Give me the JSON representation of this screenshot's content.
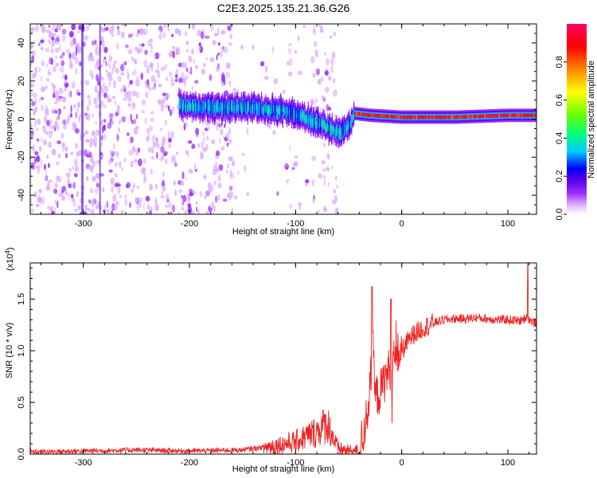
{
  "title": "C2E3.2025.135.21.36.G26",
  "chart_data": [
    {
      "type": "heatmap",
      "xlabel": "Height of straight line (km)",
      "ylabel": "Frequency (Hz)",
      "xlim": [
        -350,
        127
      ],
      "ylim": [
        -50,
        50
      ],
      "xticks": [
        -300,
        -200,
        -100,
        0,
        100
      ],
      "yticks": [
        -40,
        -20,
        0,
        20,
        40
      ],
      "colorbar": {
        "label": "Normalized spectral amplitude",
        "range": [
          0,
          1
        ],
        "ticks": [
          0.0,
          0.2,
          0.4,
          0.6,
          0.8
        ],
        "tick_labels": [
          "0.0",
          "0.2",
          "0.4",
          "0.6",
          "0.8"
        ],
        "colors": [
          "#ffffff",
          "#e0b0ff",
          "#9b30ff",
          "#5a00e8",
          "#0000ff",
          "#00ccff",
          "#00ff80",
          "#66ff00",
          "#ffff00",
          "#ff8800",
          "#ff0000",
          "#ff0060"
        ]
      },
      "ridge": {
        "x": [
          -210,
          -180,
          -150,
          -120,
          -100,
          -80,
          -60,
          -50,
          -45,
          -30,
          0,
          50,
          100,
          127
        ],
        "y": [
          7,
          6,
          6,
          5,
          3,
          -2,
          -7,
          -4,
          3,
          2,
          1,
          1,
          2,
          2
        ]
      }
    },
    {
      "type": "line",
      "xlabel": "Height of straight line (km)",
      "ylabel": "SNR (10 * v/v)",
      "scale_label": "(x10",
      "scale_exp": "4",
      "scale_close": ")",
      "xlim": [
        -350,
        127
      ],
      "ylim": [
        0,
        1.85
      ],
      "xticks": [
        -300,
        -200,
        -100,
        0,
        100
      ],
      "yticks": [
        0.0,
        0.5,
        1.0,
        1.5
      ],
      "ytick_labels": [
        "0.0",
        "0.5",
        "1.0",
        "1.5"
      ],
      "series": [
        {
          "color": "#ee2222",
          "x": [
            -350,
            -300,
            -250,
            -200,
            -150,
            -120,
            -100,
            -80,
            -70,
            -60,
            -50,
            -40,
            -35,
            -30,
            -27,
            -25,
            -20,
            -15,
            -10,
            -5,
            0,
            5,
            10,
            20,
            30,
            40,
            50,
            60,
            70,
            80,
            90,
            100,
            110,
            115,
            118,
            120,
            125,
            127
          ],
          "y": [
            0.02,
            0.03,
            0.04,
            0.03,
            0.04,
            0.08,
            0.12,
            0.22,
            0.3,
            0.05,
            0.03,
            0.03,
            0.25,
            0.6,
            1.0,
            0.55,
            0.6,
            0.75,
            0.85,
            0.95,
            1.0,
            1.08,
            1.15,
            1.22,
            1.27,
            1.3,
            1.31,
            1.31,
            1.32,
            1.31,
            1.3,
            1.3,
            1.29,
            1.3,
            1.35,
            1.3,
            1.27,
            1.28
          ]
        }
      ],
      "peaks": [
        {
          "x": -28,
          "y": 1.62
        },
        {
          "x": -10,
          "y": 1.5
        },
        {
          "x": 119,
          "y": 1.85
        }
      ]
    }
  ]
}
